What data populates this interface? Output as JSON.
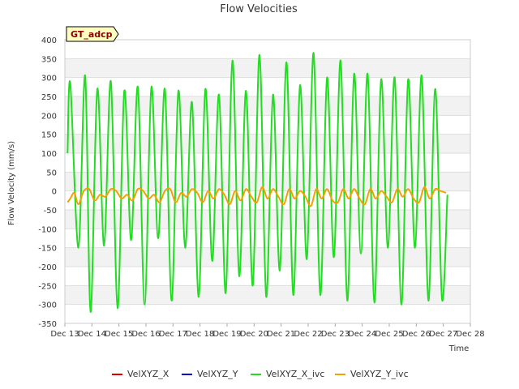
{
  "chart_data": {
    "type": "line",
    "title": "Flow Velocities",
    "xlabel": "Time",
    "ylabel": "Flow Velocity (mm/s)",
    "badge": "GT_adcp",
    "x_ticks": [
      "Dec 13",
      "Dec 14",
      "Dec 15",
      "Dec 16",
      "Dec 17",
      "Dec 18",
      "Dec 19",
      "Dec 20",
      "Dec 21",
      "Dec 22",
      "Dec 23",
      "Dec 24",
      "Dec 25",
      "Dec 26",
      "Dec 27",
      "Dec 28"
    ],
    "xlim": [
      13,
      28
    ],
    "ylim": [
      -350,
      400
    ],
    "y_ticks": [
      -350,
      -300,
      -250,
      -200,
      -150,
      -100,
      -50,
      0,
      50,
      100,
      150,
      200,
      250,
      300,
      350,
      400
    ],
    "legend": [
      {
        "name": "VelXYZ_X",
        "color": "#dd0000"
      },
      {
        "name": "VelXYZ_Y",
        "color": "#0000cc"
      },
      {
        "name": "VelXYZ_X_ivc",
        "color": "#22dd22"
      },
      {
        "name": "VelXYZ_Y_ivc",
        "color": "#f5a000"
      }
    ],
    "series": [
      {
        "name": "VelXYZ_X_ivc",
        "color": "#22dd22",
        "x": [
          13.1,
          13.2,
          13.5,
          13.75,
          13.95,
          14.2,
          14.45,
          14.7,
          14.95,
          15.2,
          15.45,
          15.7,
          15.95,
          16.2,
          16.45,
          16.7,
          16.95,
          17.2,
          17.45,
          17.7,
          17.95,
          18.2,
          18.45,
          18.7,
          18.95,
          19.2,
          19.45,
          19.7,
          19.95,
          20.2,
          20.45,
          20.7,
          20.95,
          21.2,
          21.45,
          21.7,
          21.95,
          22.2,
          22.45,
          22.7,
          22.95,
          23.2,
          23.45,
          23.7,
          23.95,
          24.2,
          24.45,
          24.7,
          24.95,
          25.2,
          25.45,
          25.7,
          25.95,
          26.2,
          26.45,
          26.7,
          26.95,
          27.15
        ],
        "y": [
          100,
          285,
          -150,
          305,
          -320,
          270,
          -145,
          290,
          -310,
          265,
          -130,
          275,
          -300,
          275,
          -125,
          270,
          -290,
          265,
          -150,
          235,
          -280,
          270,
          -185,
          255,
          -270,
          345,
          -225,
          265,
          -250,
          360,
          -280,
          255,
          -210,
          340,
          -275,
          280,
          -180,
          365,
          -275,
          300,
          -175,
          345,
          -290,
          310,
          -165,
          310,
          -295,
          295,
          -150,
          300,
          -300,
          295,
          -150,
          305,
          -290,
          270,
          -285,
          -10
        ]
      },
      {
        "name": "VelXYZ_Y_ivc",
        "color": "#f5a000",
        "x": [
          13.1,
          13.2,
          13.35,
          13.5,
          13.7,
          13.9,
          14.1,
          14.3,
          14.5,
          14.7,
          14.9,
          15.1,
          15.3,
          15.5,
          15.7,
          15.9,
          16.1,
          16.3,
          16.5,
          16.7,
          16.9,
          17.1,
          17.3,
          17.5,
          17.7,
          17.9,
          18.1,
          18.3,
          18.5,
          18.7,
          18.9,
          19.1,
          19.3,
          19.5,
          19.7,
          19.9,
          20.1,
          20.3,
          20.5,
          20.7,
          20.9,
          21.1,
          21.3,
          21.5,
          21.7,
          21.9,
          22.1,
          22.3,
          22.5,
          22.7,
          22.9,
          23.1,
          23.3,
          23.5,
          23.7,
          23.9,
          24.1,
          24.3,
          24.5,
          24.7,
          24.9,
          25.1,
          25.3,
          25.5,
          25.7,
          25.9,
          26.1,
          26.3,
          26.5,
          26.7,
          26.9,
          27.1
        ],
        "y": [
          -30,
          -20,
          -5,
          -35,
          0,
          5,
          -25,
          -10,
          -15,
          5,
          0,
          -20,
          -10,
          -25,
          5,
          0,
          -20,
          -10,
          -30,
          0,
          5,
          -30,
          -5,
          -15,
          5,
          -5,
          -30,
          0,
          -20,
          5,
          -10,
          -35,
          0,
          -25,
          5,
          -15,
          -30,
          10,
          -20,
          5,
          -15,
          -35,
          5,
          -20,
          0,
          -15,
          -40,
          5,
          -20,
          5,
          -25,
          -30,
          5,
          -20,
          5,
          -20,
          -35,
          5,
          -20,
          0,
          -15,
          -30,
          5,
          -15,
          5,
          -20,
          -30,
          10,
          -20,
          5,
          0,
          -5
        ]
      },
      {
        "name": "VelXYZ_X",
        "color": "#dd0000",
        "x": [],
        "y": []
      },
      {
        "name": "VelXYZ_Y",
        "color": "#0000cc",
        "x": [],
        "y": []
      }
    ]
  }
}
